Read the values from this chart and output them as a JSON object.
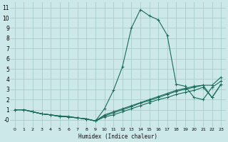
{
  "xlabel": "Humidex (Indice chaleur)",
  "bg_color": "#cce8e8",
  "grid_color": "#aacccc",
  "line_color": "#1a6b5a",
  "xlim": [
    -0.5,
    23.5
  ],
  "ylim": [
    -0.7,
    11.5
  ],
  "xticks": [
    0,
    1,
    2,
    3,
    4,
    5,
    6,
    7,
    8,
    9,
    10,
    11,
    12,
    13,
    14,
    15,
    16,
    17,
    18,
    19,
    20,
    21,
    22,
    23
  ],
  "yticks": [
    0,
    1,
    2,
    3,
    4,
    5,
    6,
    7,
    8,
    9,
    10,
    11
  ],
  "ytick_labels": [
    "-0",
    "1",
    "2",
    "3",
    "4",
    "5",
    "6",
    "7",
    "8",
    "9",
    "10",
    "11"
  ],
  "curve_peak_x": [
    0,
    1,
    2,
    3,
    4,
    5,
    6,
    7,
    8,
    9,
    10,
    11,
    12,
    13,
    14,
    15,
    16,
    17,
    18,
    19,
    20,
    21,
    22,
    23
  ],
  "curve_peak_y": [
    1.0,
    1.0,
    0.8,
    0.6,
    0.5,
    0.4,
    0.35,
    0.2,
    0.1,
    -0.1,
    1.1,
    2.9,
    5.2,
    9.0,
    10.8,
    10.2,
    9.8,
    8.3,
    3.5,
    3.3,
    2.2,
    2.0,
    3.2,
    3.8
  ],
  "curve_flat1_x": [
    0,
    1,
    2,
    3,
    4,
    5,
    6,
    7,
    8,
    9,
    10,
    11,
    12,
    13,
    14,
    15,
    16,
    17,
    18,
    19,
    20,
    21,
    22,
    23
  ],
  "curve_flat1_y": [
    1.0,
    1.0,
    0.8,
    0.6,
    0.5,
    0.35,
    0.3,
    0.2,
    0.1,
    -0.1,
    0.5,
    0.8,
    1.1,
    1.4,
    1.7,
    2.0,
    2.3,
    2.6,
    2.9,
    3.1,
    3.3,
    3.4,
    3.4,
    4.2
  ],
  "curve_flat2_x": [
    0,
    1,
    2,
    3,
    4,
    5,
    6,
    7,
    8,
    9,
    10,
    11,
    12,
    13,
    14,
    15,
    16,
    17,
    18,
    19,
    20,
    21,
    22,
    23
  ],
  "curve_flat2_y": [
    1.0,
    1.0,
    0.8,
    0.6,
    0.5,
    0.35,
    0.3,
    0.2,
    0.1,
    -0.1,
    0.4,
    0.7,
    1.0,
    1.3,
    1.65,
    1.9,
    2.2,
    2.5,
    2.8,
    3.0,
    3.2,
    3.4,
    2.2,
    3.5
  ],
  "curve_flat3_x": [
    0,
    1,
    2,
    3,
    4,
    5,
    6,
    7,
    8,
    9,
    10,
    11,
    12,
    13,
    14,
    15,
    16,
    17,
    18,
    19,
    20,
    21,
    22,
    23
  ],
  "curve_flat3_y": [
    1.0,
    1.0,
    0.8,
    0.6,
    0.5,
    0.35,
    0.3,
    0.2,
    0.1,
    -0.1,
    0.3,
    0.5,
    0.8,
    1.1,
    1.4,
    1.7,
    2.0,
    2.2,
    2.5,
    2.7,
    2.9,
    3.2,
    2.2,
    3.5
  ]
}
